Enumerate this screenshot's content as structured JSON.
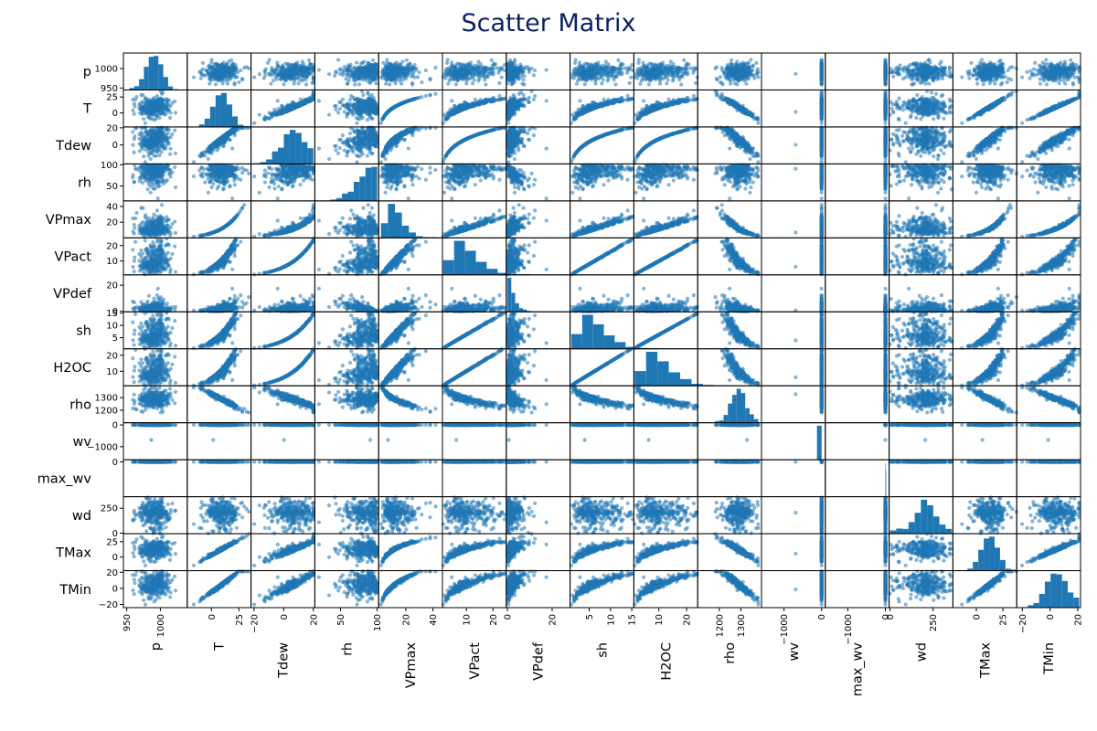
{
  "chart_data": {
    "type": "scatter",
    "title": "Scatter Matrix",
    "marker_color": "#1f77b4",
    "variables": [
      {
        "name": "p",
        "range": [
          945,
          1040
        ],
        "ticks": [
          950,
          1000
        ]
      },
      {
        "name": "T",
        "range": [
          -22,
          36
        ],
        "ticks": [
          0,
          25
        ]
      },
      {
        "name": "Tdew",
        "range": [
          -22,
          21
        ],
        "ticks": [
          -20,
          0,
          20
        ]
      },
      {
        "name": "rh",
        "range": [
          15,
          102
        ],
        "ticks": [
          50,
          100
        ]
      },
      {
        "name": "VPmax",
        "range": [
          0,
          47
        ],
        "ticks": [
          20,
          40
        ]
      },
      {
        "name": "VPact",
        "range": [
          1,
          25
        ],
        "ticks": [
          10,
          20
        ]
      },
      {
        "name": "VPdef",
        "range": [
          -0.5,
          28
        ],
        "ticks": [
          0,
          20
        ]
      },
      {
        "name": "sh",
        "range": [
          0.5,
          15.5
        ],
        "ticks": [
          5,
          10,
          15
        ]
      },
      {
        "name": "H2OC",
        "range": [
          1,
          24
        ],
        "ticks": [
          10,
          20
        ]
      },
      {
        "name": "rho",
        "range": [
          1100,
          1395
        ],
        "ticks": [
          1200,
          1300
        ]
      },
      {
        "name": "wv",
        "range": [
          -1600,
          100
        ],
        "ticks": [
          -1000,
          0
        ]
      },
      {
        "name": "max_wv",
        "range": [
          -1600,
          100
        ],
        "ticks": [
          -1000,
          0
        ]
      },
      {
        "name": "wd",
        "range": [
          -5,
          365
        ],
        "ticks": [
          0,
          250
        ]
      },
      {
        "name": "TMax",
        "range": [
          -22,
          38
        ],
        "ticks": [
          0,
          25
        ]
      },
      {
        "name": "TMin",
        "range": [
          -24,
          22
        ],
        "ticks": [
          -20,
          0,
          20
        ]
      }
    ],
    "row_ticks": {
      "p": [
        950,
        1000
      ],
      "T": [
        0,
        25
      ],
      "Tdew": [
        0,
        20
      ],
      "rh": [
        50,
        100
      ],
      "VPmax": [
        20,
        40
      ],
      "VPact": [
        10,
        20
      ],
      "VPdef": [
        0,
        20
      ],
      "sh": [
        5,
        10,
        15
      ],
      "H2OC": [
        10,
        20
      ],
      "rho": [
        1200,
        1300
      ],
      "wv": [
        -1000,
        0
      ],
      "max_wv": [
        0
      ],
      "wd": [
        0,
        250
      ],
      "TMax": [
        0,
        25
      ],
      "TMin": [
        -20,
        0,
        20
      ]
    },
    "grid": false,
    "legend": "none"
  }
}
